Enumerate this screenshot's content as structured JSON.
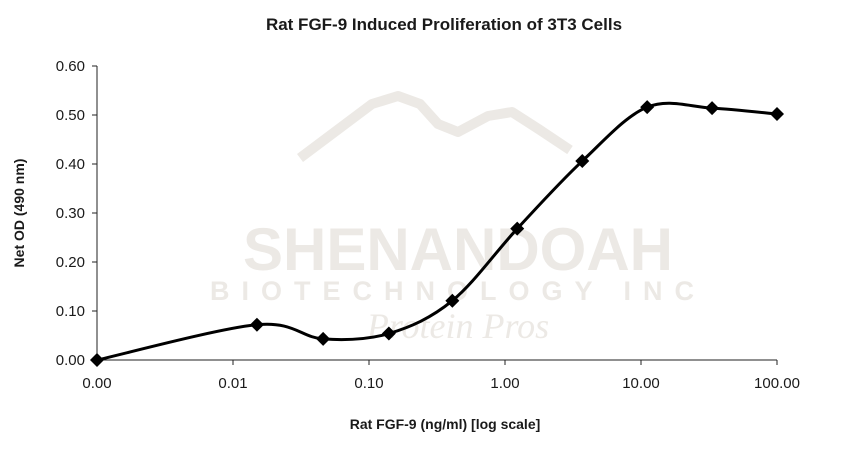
{
  "watermark": {
    "name": "SHENANDOAH",
    "line2": "BIOTECHNOLOGY INC",
    "line3": "Protein Pros"
  },
  "chart_data": {
    "type": "line",
    "title": "Rat FGF-9 Induced Proliferation of 3T3 Cells",
    "xlabel": "Rat FGF-9 (ng/ml) [log scale]",
    "ylabel": "Net OD (490 nm)",
    "x_scale": "log",
    "x_ticks": [
      0.001,
      0.01,
      0.1,
      1,
      10,
      100
    ],
    "x_tick_labels": [
      "0.00",
      "0.01",
      "0.10",
      "1.00",
      "10.00",
      "100.00"
    ],
    "ylim": [
      0,
      0.6
    ],
    "y_ticks": [
      0,
      0.1,
      0.2,
      0.3,
      0.4,
      0.5,
      0.6
    ],
    "y_tick_labels": [
      "0.00",
      "0.10",
      "0.20",
      "0.30",
      "0.40",
      "0.50",
      "0.60"
    ],
    "grid": false,
    "legend": "none",
    "line_color": "#000000",
    "marker": "diamond",
    "series": [
      {
        "x": [
          0.001,
          0.015,
          0.046,
          0.14,
          0.41,
          1.23,
          3.7,
          11.1,
          33.3,
          100
        ],
        "values": [
          0.0,
          0.072,
          0.043,
          0.054,
          0.121,
          0.268,
          0.406,
          0.516,
          0.514,
          0.502
        ]
      }
    ]
  }
}
